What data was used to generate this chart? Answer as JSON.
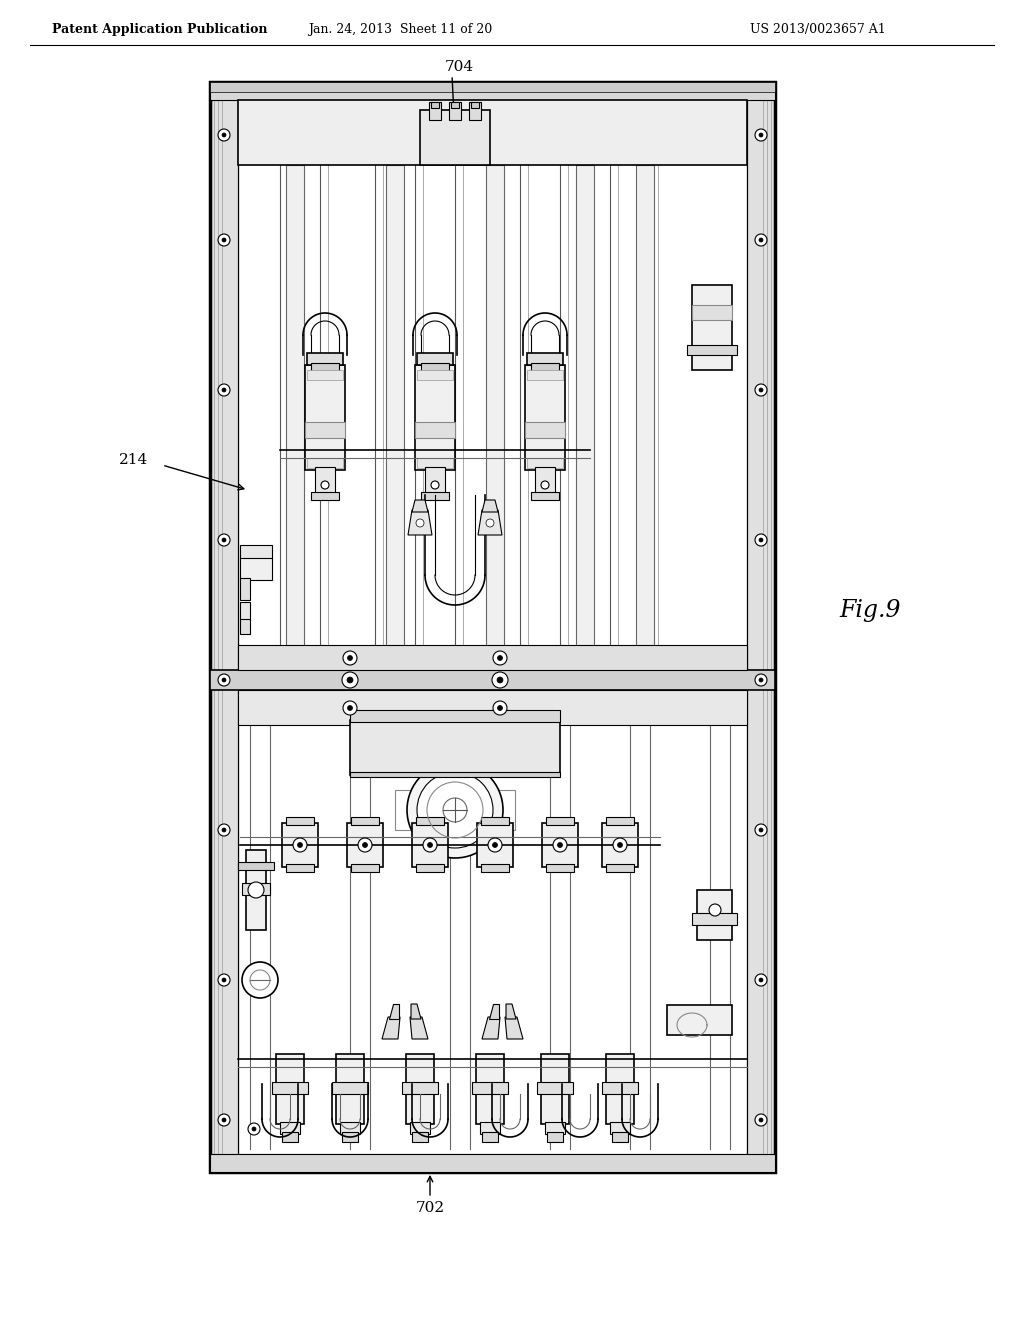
{
  "background_color": "#ffffff",
  "header_left": "Patent Application Publication",
  "header_center": "Jan. 24, 2013  Sheet 11 of 20",
  "header_right": "US 2013/0023657 A1",
  "fig_label": "Fig.9",
  "label_704": "704",
  "label_214": "214",
  "label_702": "702",
  "header_fontsize": 9,
  "label_fontsize": 11,
  "fig_label_fontsize": 17,
  "lc": "#000000",
  "fc_light": "#f8f8f8",
  "fc_mid": "#e8e8e8",
  "fc_dark": "#d0d0d0"
}
